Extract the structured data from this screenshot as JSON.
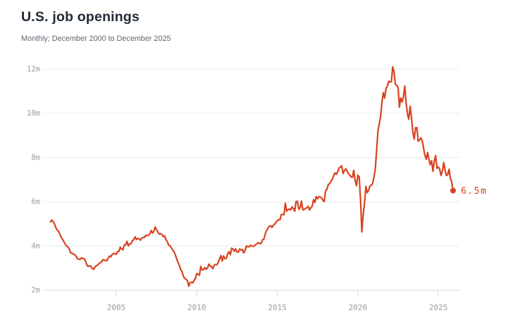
{
  "header": {
    "title": "U.S. job openings",
    "subtitle": "Monthly; December 2000 to December 2025"
  },
  "colors": {
    "accent": "#d8431f",
    "title": "#222b36",
    "subtitle": "#5d6771",
    "axis_label": "#989da4",
    "gridline": "#e8e9eb",
    "axis_line": "#d9dbdd",
    "background": "#ffffff"
  },
  "chart_data": {
    "type": "line",
    "title": "U.S. job openings",
    "subtitle": "Monthly; December 2000 to December 2025",
    "series_name": "U.S. job openings",
    "unit": "millions",
    "frequency": "monthly",
    "x_start": {
      "year": 2000,
      "month": 12
    },
    "x_end": {
      "year": 2025,
      "month": 12
    },
    "ylim": [
      2,
      12.4
    ],
    "grid": "horizontal",
    "legend": "none",
    "line_color": "#d8431f",
    "end_label": "6.5m",
    "end_value": 6.5,
    "y_ticks": [
      {
        "value": 2,
        "label": "2m"
      },
      {
        "value": 4,
        "label": "4m"
      },
      {
        "value": 6,
        "label": "6m"
      },
      {
        "value": 8,
        "label": "8m"
      },
      {
        "value": 10,
        "label": "10m"
      },
      {
        "value": 12,
        "label": "12m"
      }
    ],
    "x_ticks": [
      {
        "year": 2005,
        "label": "2005"
      },
      {
        "year": 2010,
        "label": "2010"
      },
      {
        "year": 2015,
        "label": "2015"
      },
      {
        "year": 2020,
        "label": "2020"
      },
      {
        "year": 2025,
        "label": "2025"
      }
    ],
    "values": [
      5.09,
      5.17,
      5.1,
      4.99,
      4.82,
      4.72,
      4.66,
      4.52,
      4.38,
      4.3,
      4.19,
      4.08,
      4.0,
      3.96,
      3.87,
      3.69,
      3.67,
      3.64,
      3.6,
      3.54,
      3.42,
      3.41,
      3.39,
      3.46,
      3.43,
      3.43,
      3.33,
      3.15,
      3.07,
      3.09,
      3.09,
      2.99,
      2.94,
      3.03,
      3.1,
      3.13,
      3.19,
      3.24,
      3.27,
      3.38,
      3.35,
      3.35,
      3.32,
      3.45,
      3.54,
      3.51,
      3.62,
      3.65,
      3.66,
      3.62,
      3.75,
      3.76,
      3.94,
      3.86,
      3.82,
      4.04,
      4.05,
      4.21,
      4.0,
      4.09,
      4.1,
      4.24,
      4.28,
      4.41,
      4.29,
      4.34,
      4.32,
      4.26,
      4.36,
      4.38,
      4.38,
      4.48,
      4.46,
      4.48,
      4.54,
      4.7,
      4.58,
      4.66,
      4.86,
      4.74,
      4.63,
      4.53,
      4.55,
      4.52,
      4.42,
      4.46,
      4.28,
      4.21,
      4.03,
      4.02,
      3.92,
      3.82,
      3.75,
      3.6,
      3.42,
      3.26,
      3.13,
      2.93,
      2.84,
      2.64,
      2.53,
      2.5,
      2.43,
      2.18,
      2.34,
      2.36,
      2.33,
      2.43,
      2.54,
      2.75,
      2.71,
      2.68,
      3.07,
      2.92,
      2.92,
      3.02,
      2.95,
      3.0,
      3.18,
      3.09,
      3.06,
      2.97,
      3.13,
      3.16,
      3.15,
      3.26,
      3.42,
      3.56,
      3.32,
      3.55,
      3.42,
      3.44,
      3.64,
      3.74,
      3.6,
      3.9,
      3.86,
      3.76,
      3.87,
      3.72,
      3.72,
      3.86,
      3.81,
      3.84,
      3.68,
      3.81,
      4.0,
      3.96,
      3.96,
      4.03,
      4.0,
      3.98,
      4.01,
      4.06,
      4.11,
      4.15,
      4.1,
      4.11,
      4.28,
      4.3,
      4.54,
      4.68,
      4.81,
      4.89,
      4.91,
      4.84,
      4.93,
      4.99,
      5.07,
      5.14,
      5.19,
      5.18,
      5.41,
      5.43,
      5.41,
      5.93,
      5.57,
      5.64,
      5.67,
      5.63,
      5.77,
      5.69,
      5.57,
      6.01,
      6.02,
      5.66,
      5.72,
      6.03,
      5.63,
      5.65,
      5.69,
      5.73,
      5.79,
      5.62,
      5.73,
      5.79,
      6.09,
      5.97,
      6.23,
      6.13,
      6.23,
      6.21,
      6.18,
      6.07,
      6.0,
      6.51,
      6.56,
      6.78,
      6.82,
      6.93,
      7.01,
      7.18,
      7.3,
      7.24,
      7.36,
      7.52,
      7.57,
      7.63,
      7.28,
      7.4,
      7.49,
      7.39,
      7.27,
      7.21,
      7.12,
      7.1,
      7.42,
      6.97,
      6.72,
      7.2,
      7.13,
      6.09,
      4.63,
      5.42,
      5.95,
      6.7,
      6.41,
      6.51,
      6.71,
      6.75,
      6.82,
      7.1,
      7.46,
      8.29,
      9.19,
      9.52,
      9.86,
      10.5,
      10.93,
      10.69,
      11.12,
      11.23,
      11.45,
      11.41,
      11.43,
      12.1,
      11.86,
      11.31,
      11.26,
      11.17,
      10.28,
      10.69,
      10.51,
      10.75,
      11.23,
      10.48,
      9.97,
      9.73,
      10.32,
      9.82,
      9.17,
      8.83,
      9.35,
      9.35,
      8.73,
      8.8,
      8.89,
      8.75,
      8.43,
      8.1,
      7.92,
      8.23,
      7.91,
      7.67,
      7.86,
      7.37,
      7.84,
      8.09,
      7.51,
      7.57,
      7.48,
      7.19,
      7.39,
      7.77,
      7.44,
      7.18,
      7.23,
      7.47,
      7.05,
      6.89,
      6.5
    ]
  }
}
